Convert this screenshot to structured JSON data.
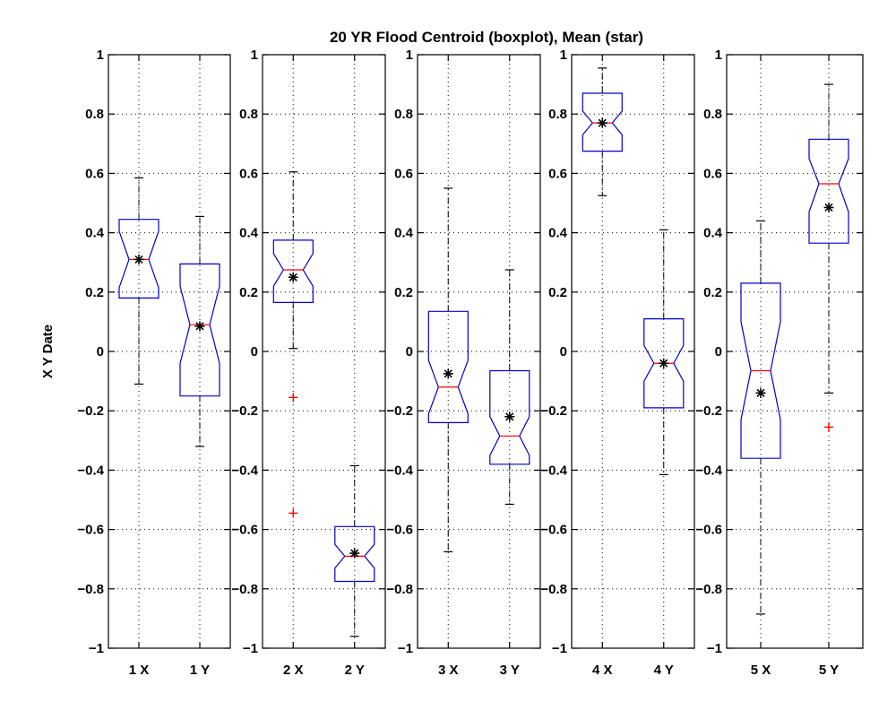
{
  "chart_data": {
    "type": "boxplot",
    "title": "20 YR Flood Centroid (boxplot), Mean (star)",
    "ylabel": "X Y Date",
    "ylim": [
      -1,
      1
    ],
    "yticks": [
      -1,
      -0.8,
      -0.6,
      -0.4,
      -0.2,
      0,
      0.2,
      0.4,
      0.6,
      0.8,
      1
    ],
    "ytick_labels": [
      "−1",
      "−0.8",
      "−0.6",
      "−0.4",
      "−0.2",
      "0",
      "0.2",
      "0.4",
      "0.6",
      "0.8",
      "1"
    ],
    "grid": true,
    "colors": {
      "box": "#0000cc",
      "median": "#ff0000",
      "outlier": "#ff0000",
      "mean": "#000000",
      "whisker": "#000000",
      "grid": "#000000"
    },
    "panels": [
      {
        "categories": [
          "1 X",
          "1 Y"
        ],
        "boxes": [
          {
            "whisker_low": -0.11,
            "q1": 0.18,
            "median": 0.31,
            "q3": 0.445,
            "whisker_high": 0.585,
            "notch_low": 0.215,
            "notch_high": 0.405,
            "mean": 0.31,
            "outliers": []
          },
          {
            "whisker_low": -0.32,
            "q1": -0.15,
            "median": 0.09,
            "q3": 0.295,
            "whisker_high": 0.455,
            "notch_low": -0.04,
            "notch_high": 0.22,
            "mean": 0.085,
            "outliers": []
          }
        ]
      },
      {
        "categories": [
          "2 X",
          "2 Y"
        ],
        "boxes": [
          {
            "whisker_low": 0.01,
            "q1": 0.165,
            "median": 0.275,
            "q3": 0.375,
            "whisker_high": 0.605,
            "notch_low": 0.22,
            "notch_high": 0.33,
            "mean": 0.25,
            "outliers": [
              -0.155,
              -0.545
            ]
          },
          {
            "whisker_low": -0.96,
            "q1": -0.775,
            "median": -0.69,
            "q3": -0.59,
            "whisker_high": -0.385,
            "notch_low": -0.73,
            "notch_high": -0.65,
            "mean": -0.68,
            "outliers": []
          }
        ]
      },
      {
        "categories": [
          "3 X",
          "3 Y"
        ],
        "boxes": [
          {
            "whisker_low": -0.675,
            "q1": -0.24,
            "median": -0.12,
            "q3": 0.135,
            "whisker_high": 0.55,
            "notch_low": -0.21,
            "notch_high": -0.03,
            "mean": -0.075,
            "outliers": []
          },
          {
            "whisker_low": -0.515,
            "q1": -0.38,
            "median": -0.285,
            "q3": -0.065,
            "whisker_high": 0.275,
            "notch_low": -0.35,
            "notch_high": -0.22,
            "mean": -0.22,
            "outliers": []
          }
        ]
      },
      {
        "categories": [
          "4 X",
          "4 Y"
        ],
        "boxes": [
          {
            "whisker_low": 0.525,
            "q1": 0.675,
            "median": 0.77,
            "q3": 0.87,
            "whisker_high": 0.955,
            "notch_low": 0.73,
            "notch_high": 0.81,
            "mean": 0.77,
            "outliers": []
          },
          {
            "whisker_low": -0.415,
            "q1": -0.19,
            "median": -0.04,
            "q3": 0.11,
            "whisker_high": 0.41,
            "notch_low": -0.1,
            "notch_high": 0.02,
            "mean": -0.04,
            "outliers": []
          }
        ]
      },
      {
        "categories": [
          "5 X",
          "5 Y"
        ],
        "boxes": [
          {
            "whisker_low": -0.885,
            "q1": -0.36,
            "median": -0.065,
            "q3": 0.23,
            "whisker_high": 0.44,
            "notch_low": -0.23,
            "notch_high": 0.1,
            "mean": -0.14,
            "outliers": []
          },
          {
            "whisker_low": -0.14,
            "q1": 0.365,
            "median": 0.565,
            "q3": 0.715,
            "whisker_high": 0.9,
            "notch_low": 0.47,
            "notch_high": 0.65,
            "mean": 0.485,
            "outliers": [
              -0.255
            ]
          }
        ]
      }
    ]
  }
}
